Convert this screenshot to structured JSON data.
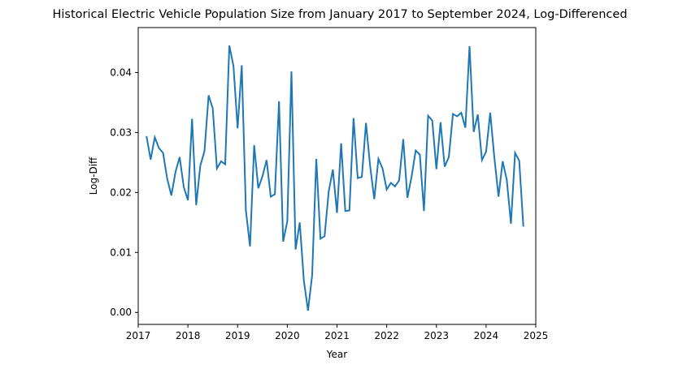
{
  "chart_data": {
    "type": "line",
    "title": "Historical Electric Vehicle Population Size from January 2017 to September 2024, Log-Differenced",
    "xlabel": "Year",
    "ylabel": "Log-Diff",
    "xlim": [
      2017.0,
      2025.0
    ],
    "ylim": [
      -0.002,
      0.0475
    ],
    "x_ticks": [
      2017,
      2018,
      2019,
      2020,
      2021,
      2022,
      2023,
      2024,
      2025
    ],
    "y_ticks": [
      "0.00",
      "0.01",
      "0.02",
      "0.03",
      "0.04"
    ],
    "grid": false,
    "legend": "none",
    "series": [
      {
        "color": "#1f77b4",
        "x": [
          "2017-03",
          "2017-04",
          "2017-05",
          "2017-06",
          "2017-07",
          "2017-08",
          "2017-09",
          "2017-10",
          "2017-11",
          "2017-12",
          "2018-01",
          "2018-02",
          "2018-03",
          "2018-04",
          "2018-05",
          "2018-06",
          "2018-07",
          "2018-08",
          "2018-09",
          "2018-10",
          "2018-11",
          "2018-12",
          "2019-01",
          "2019-02",
          "2019-03",
          "2019-04",
          "2019-05",
          "2019-06",
          "2019-07",
          "2019-08",
          "2019-09",
          "2019-10",
          "2019-11",
          "2019-12",
          "2020-01",
          "2020-02",
          "2020-03",
          "2020-04",
          "2020-05",
          "2020-06",
          "2020-07",
          "2020-08",
          "2020-09",
          "2020-10",
          "2020-11",
          "2020-12",
          "2021-01",
          "2021-02",
          "2021-03",
          "2021-04",
          "2021-05",
          "2021-06",
          "2021-07",
          "2021-08",
          "2021-09",
          "2021-10",
          "2021-11",
          "2021-12",
          "2022-01",
          "2022-02",
          "2022-03",
          "2022-04",
          "2022-05",
          "2022-06",
          "2022-07",
          "2022-08",
          "2022-09",
          "2022-10",
          "2022-11",
          "2022-12",
          "2023-01",
          "2023-02",
          "2023-03",
          "2023-04",
          "2023-05",
          "2023-06",
          "2023-07",
          "2023-08",
          "2023-09",
          "2023-10",
          "2023-11",
          "2023-12",
          "2024-01",
          "2024-02",
          "2024-03",
          "2024-04",
          "2024-05",
          "2024-06",
          "2024-07",
          "2024-08",
          "2024-09",
          "2024-10"
        ],
        "y": [
          0.0294,
          0.0255,
          0.0292,
          0.0274,
          0.0266,
          0.0223,
          0.0195,
          0.0234,
          0.0259,
          0.0209,
          0.0187,
          0.0323,
          0.0179,
          0.0245,
          0.0269,
          0.0362,
          0.034,
          0.024,
          0.0252,
          0.0247,
          0.0445,
          0.0411,
          0.0307,
          0.0412,
          0.017,
          0.011,
          0.0279,
          0.0207,
          0.0227,
          0.0254,
          0.0193,
          0.0197,
          0.0352,
          0.0118,
          0.0152,
          0.0402,
          0.0105,
          0.015,
          0.0053,
          0.0003,
          0.0062,
          0.0256,
          0.0123,
          0.0127,
          0.0202,
          0.0238,
          0.0166,
          0.0282,
          0.0169,
          0.017,
          0.0324,
          0.0224,
          0.0226,
          0.0316,
          0.0244,
          0.0189,
          0.0256,
          0.024,
          0.0205,
          0.0216,
          0.021,
          0.022,
          0.0289,
          0.0191,
          0.0226,
          0.027,
          0.0263,
          0.0169,
          0.0328,
          0.032,
          0.0239,
          0.0317,
          0.0243,
          0.0259,
          0.0331,
          0.0327,
          0.0333,
          0.0308,
          0.0444,
          0.0301,
          0.033,
          0.0254,
          0.0268,
          0.0333,
          0.0258,
          0.0193,
          0.0252,
          0.0221,
          0.0148,
          0.0266,
          0.0253,
          0.0143
        ]
      }
    ]
  }
}
